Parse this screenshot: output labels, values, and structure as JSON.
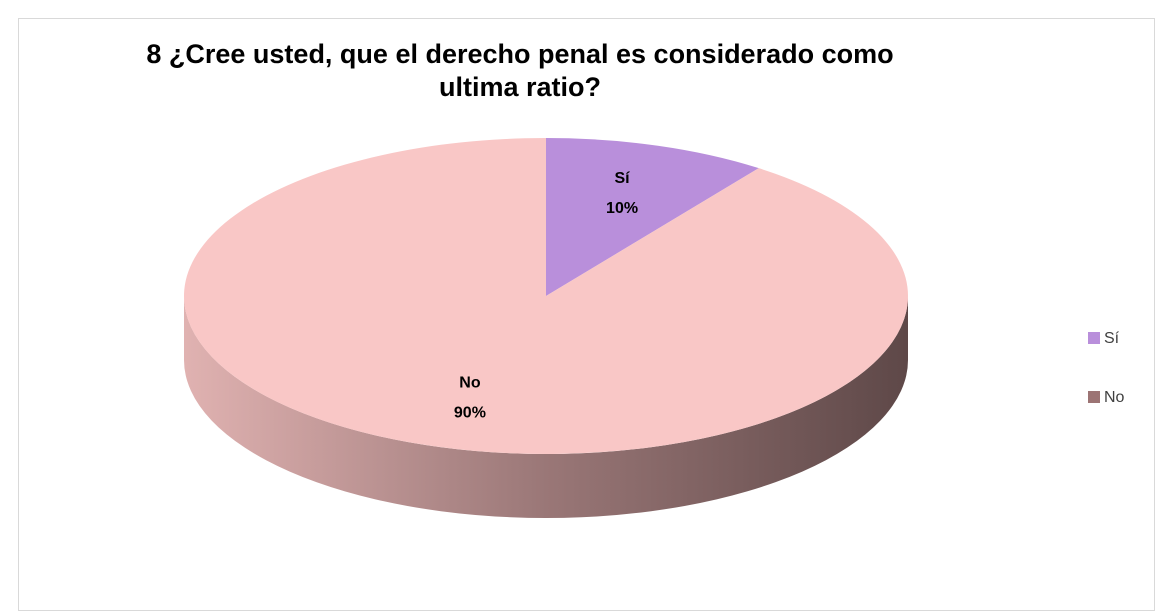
{
  "chart_data": {
    "type": "pie",
    "title": "8 ¿Cree usted, que el derecho penal es considerado como ultima ratio?",
    "categories": [
      "Sí",
      "No"
    ],
    "values": [
      10,
      90
    ],
    "value_labels": [
      "10%",
      "90%"
    ],
    "colors": [
      "#b98fdb",
      "#f9c7c6"
    ],
    "legend": "right"
  }
}
